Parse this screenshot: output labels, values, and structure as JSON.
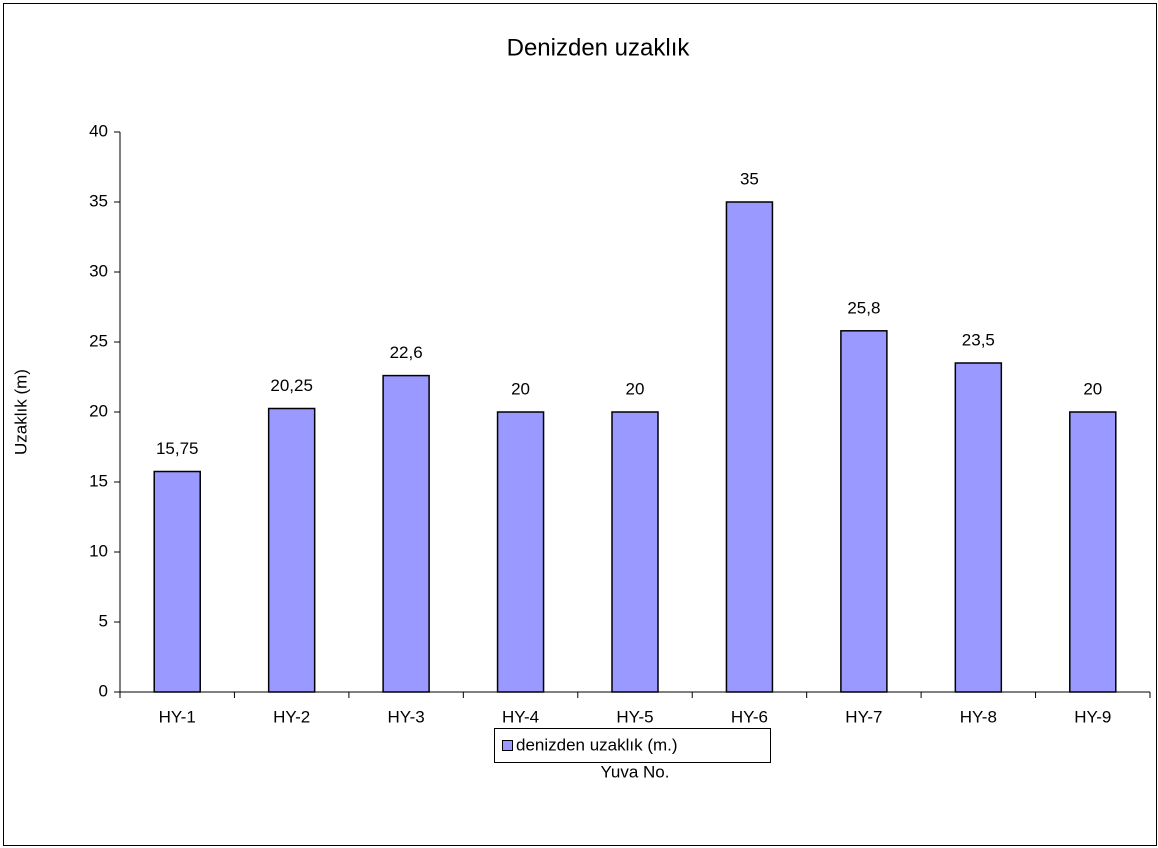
{
  "chart_data": {
    "type": "bar",
    "title": "Denizden uzaklık",
    "x_label": "Yuva No.",
    "y_label": "Uzaklık (m)",
    "categories": [
      "HY-1",
      "HY-2",
      "HY-3",
      "HY-4",
      "HY-5",
      "HY-6",
      "HY-7",
      "HY-8",
      "HY-9"
    ],
    "series": [
      {
        "name": "denizden uzaklık (m.)",
        "color": "#9999ff",
        "values": [
          15.75,
          20.25,
          22.6,
          20,
          20,
          35,
          25.8,
          23.5,
          20
        ],
        "value_labels": [
          "15,75",
          "20,25",
          "22,6",
          "20",
          "20",
          "35",
          "25,8",
          "23,5",
          "20"
        ]
      }
    ],
    "ylim": [
      0,
      40
    ],
    "yticks": [
      0,
      5,
      10,
      15,
      20,
      25,
      30,
      35,
      40
    ],
    "grid": false,
    "legend": "bottom"
  }
}
